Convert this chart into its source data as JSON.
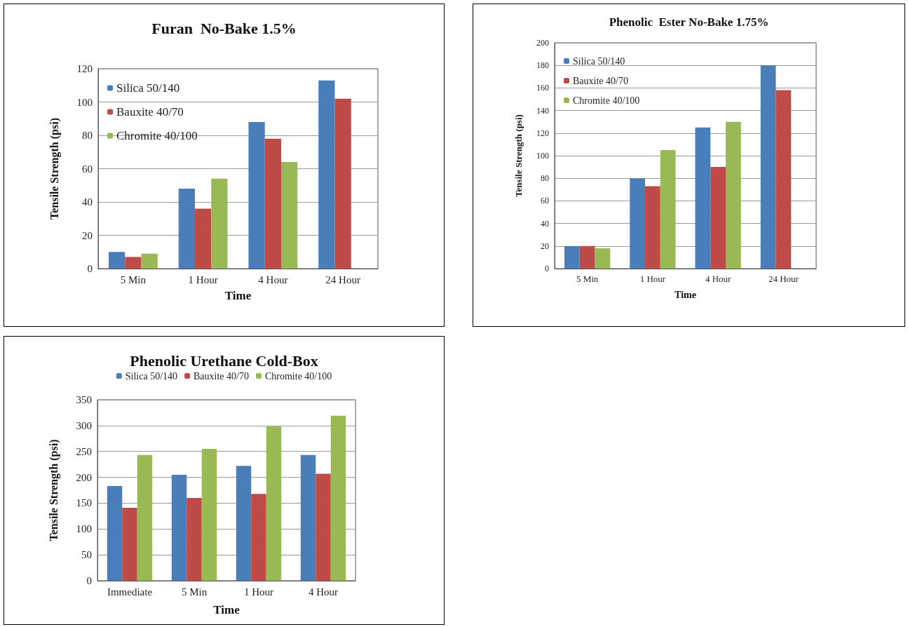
{
  "chart_data": [
    {
      "type": "bar",
      "title": "Furan  No-Bake 1.5%",
      "xlabel": "Time",
      "ylabel": "Tensile Strength (psi)",
      "categories": [
        "5 Min",
        "1 Hour",
        "4 Hour",
        "24 Hour"
      ],
      "ylim": [
        0,
        120
      ],
      "yticks": [
        0,
        20,
        40,
        60,
        80,
        100,
        120
      ],
      "grid": "y",
      "legend": "top left",
      "series": [
        {
          "name": "Silica 50/140",
          "color": "#4a7ebb",
          "values": [
            10,
            48,
            88,
            113
          ]
        },
        {
          "name": "Bauxite 40/70",
          "color": "#be4b48",
          "values": [
            7,
            36,
            78,
            102
          ]
        },
        {
          "name": "Chromite 40/100",
          "color": "#98b954",
          "values": [
            9,
            54,
            64,
            null
          ]
        }
      ]
    },
    {
      "type": "bar",
      "title": "Phenolic  Ester No-Bake 1.75%",
      "xlabel": "Time",
      "ylabel": "Tensile Strength (psi)",
      "categories": [
        "5 Min",
        "1 Hour",
        "4 Hour",
        "24 Hour"
      ],
      "ylim": [
        0,
        200
      ],
      "yticks": [
        0,
        20,
        40,
        60,
        80,
        100,
        120,
        140,
        160,
        180,
        200
      ],
      "grid": "y",
      "legend": "top left",
      "series": [
        {
          "name": "Silica 50/140",
          "color": "#4a7ebb",
          "values": [
            20,
            80,
            125,
            180
          ]
        },
        {
          "name": "Bauxite 40/70",
          "color": "#be4b48",
          "values": [
            20,
            73,
            90,
            158
          ]
        },
        {
          "name": "Chromite 40/100",
          "color": "#98b954",
          "values": [
            18,
            105,
            130,
            null
          ]
        }
      ]
    },
    {
      "type": "bar",
      "title": "Phenolic Urethane Cold-Box",
      "xlabel": "Time",
      "ylabel": "Tensile Strength (psi)",
      "categories": [
        "Immediate",
        "5 Min",
        "1 Hour",
        "4 Hour"
      ],
      "ylim": [
        0,
        350
      ],
      "yticks": [
        0,
        50,
        100,
        150,
        200,
        250,
        300,
        350
      ],
      "grid": "y",
      "legend": "top",
      "series": [
        {
          "name": "Silica 50/140",
          "color": "#4a7ebb",
          "values": [
            183,
            205,
            222,
            243
          ]
        },
        {
          "name": "Bauxite 40/70",
          "color": "#be4b48",
          "values": [
            141,
            160,
            168,
            207
          ]
        },
        {
          "name": "Chromite 40/100",
          "color": "#98b954",
          "values": [
            243,
            255,
            298,
            319
          ]
        }
      ]
    }
  ]
}
